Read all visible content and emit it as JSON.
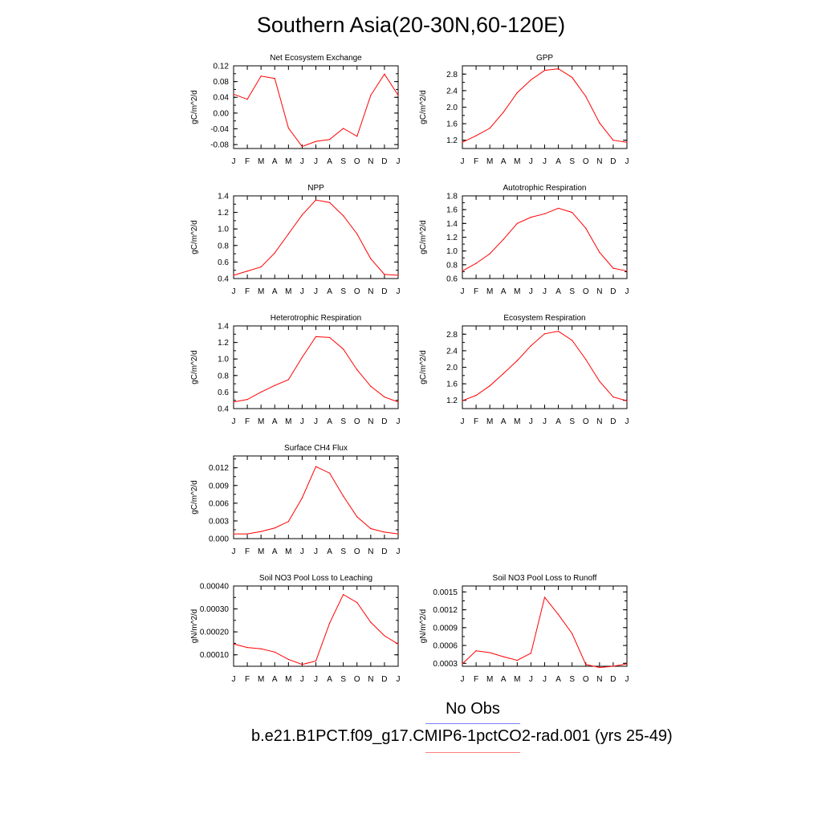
{
  "title": "Southern Asia(20-30N,60-120E)",
  "months": [
    "J",
    "F",
    "M",
    "A",
    "M",
    "J",
    "J",
    "A",
    "S",
    "O",
    "N",
    "D",
    "J"
  ],
  "legend": {
    "obs_label": "No Obs",
    "model_label": "b.e21.B1PCT.f09_g17.CMIP6-1pctCO2-rad.001 (yrs 25-49)",
    "obs_color": "#7f7fff",
    "model_color": "#ff0000"
  },
  "chart_data": [
    {
      "type": "line",
      "title": "Net Ecosystem Exchange",
      "ylabel": "gC/m^2/d",
      "ylim": [
        -0.09,
        0.12
      ],
      "yticks": [
        -0.08,
        -0.04,
        0.0,
        0.04,
        0.08,
        0.12
      ],
      "ytick_labels": [
        "-0.08",
        "-0.04",
        "0.00",
        "0.04",
        "0.08",
        "0.12"
      ],
      "values": [
        0.048,
        0.035,
        0.094,
        0.088,
        -0.038,
        -0.085,
        -0.072,
        -0.067,
        -0.039,
        -0.059,
        0.045,
        0.099,
        0.045
      ]
    },
    {
      "type": "line",
      "title": "GPP",
      "ylabel": "gC/m^2/d",
      "ylim": [
        1.0,
        3.0
      ],
      "yticks": [
        1.2,
        1.6,
        2.0,
        2.4,
        2.8
      ],
      "ytick_labels": [
        "1.2",
        "1.6",
        "2.0",
        "2.4",
        "2.8"
      ],
      "values": [
        1.15,
        1.31,
        1.49,
        1.88,
        2.35,
        2.66,
        2.89,
        2.93,
        2.72,
        2.26,
        1.62,
        1.2,
        1.15
      ]
    },
    {
      "type": "line",
      "title": "NPP",
      "ylabel": "gC/m^2/d",
      "ylim": [
        0.4,
        1.4
      ],
      "yticks": [
        0.4,
        0.6,
        0.8,
        1.0,
        1.2,
        1.4
      ],
      "ytick_labels": [
        "0.4",
        "0.6",
        "0.8",
        "1.0",
        "1.2",
        "1.4"
      ],
      "values": [
        0.44,
        0.49,
        0.54,
        0.71,
        0.94,
        1.17,
        1.35,
        1.32,
        1.16,
        0.94,
        0.64,
        0.45,
        0.44
      ]
    },
    {
      "type": "line",
      "title": "Autotrophic Respiration",
      "ylabel": "gC/m^2/d",
      "ylim": [
        0.6,
        1.8
      ],
      "yticks": [
        0.6,
        0.8,
        1.0,
        1.2,
        1.4,
        1.6,
        1.8
      ],
      "ytick_labels": [
        "0.6",
        "0.8",
        "1.0",
        "1.2",
        "1.4",
        "1.6",
        "1.8"
      ],
      "values": [
        0.71,
        0.82,
        0.96,
        1.17,
        1.4,
        1.49,
        1.54,
        1.62,
        1.56,
        1.33,
        0.98,
        0.75,
        0.71
      ]
    },
    {
      "type": "line",
      "title": "Heterotrophic Respiration",
      "ylabel": "gC/m^2/d",
      "ylim": [
        0.4,
        1.4
      ],
      "yticks": [
        0.4,
        0.6,
        0.8,
        1.0,
        1.2,
        1.4
      ],
      "ytick_labels": [
        "0.4",
        "0.6",
        "0.8",
        "1.0",
        "1.2",
        "1.4"
      ],
      "values": [
        0.48,
        0.51,
        0.6,
        0.68,
        0.75,
        1.02,
        1.27,
        1.26,
        1.12,
        0.87,
        0.67,
        0.54,
        0.48
      ]
    },
    {
      "type": "line",
      "title": "Ecosystem Respiration",
      "ylabel": "gC/m^2/d",
      "ylim": [
        1.0,
        3.0
      ],
      "yticks": [
        1.2,
        1.6,
        2.0,
        2.4,
        2.8
      ],
      "ytick_labels": [
        "1.2",
        "1.6",
        "2.0",
        "2.4",
        "2.8"
      ],
      "values": [
        1.19,
        1.32,
        1.55,
        1.85,
        2.16,
        2.52,
        2.81,
        2.87,
        2.65,
        2.19,
        1.66,
        1.28,
        1.19
      ]
    },
    {
      "type": "line",
      "title": "Surface CH4 Flux",
      "ylabel": "gC/m^2/d",
      "ylim": [
        0.0,
        0.014
      ],
      "yticks": [
        0.0,
        0.003,
        0.006,
        0.009,
        0.012
      ],
      "ytick_labels": [
        "0.000",
        "0.003",
        "0.006",
        "0.009",
        "0.012"
      ],
      "values": [
        0.0008,
        0.0008,
        0.0012,
        0.0018,
        0.0029,
        0.0069,
        0.0122,
        0.0111,
        0.0072,
        0.0037,
        0.0017,
        0.0011,
        0.0008
      ]
    },
    {
      "type": "line",
      "title": "Soil NO3 Pool Loss to Leaching",
      "ylabel": "gN/m^2/d",
      "ylim": [
        5e-05,
        0.0004
      ],
      "yticks": [
        0.0001,
        0.0002,
        0.0003,
        0.0004
      ],
      "ytick_labels": [
        "0.00010",
        "0.00020",
        "0.00030",
        "0.00040"
      ],
      "values": [
        0.000147,
        0.000132,
        0.000126,
        0.000112,
        8e-05,
        5.8e-05,
        7.3e-05,
        0.000238,
        0.000363,
        0.000328,
        0.000242,
        0.000183,
        0.000147
      ]
    },
    {
      "type": "line",
      "title": "Soil NO3 Pool Loss to Runoff",
      "ylabel": "gN/m^2/d",
      "ylim": [
        0.00025,
        0.0016
      ],
      "yticks": [
        0.0003,
        0.0006,
        0.0009,
        0.0012,
        0.0015
      ],
      "ytick_labels": [
        "0.0003",
        "0.0006",
        "0.0009",
        "0.0012",
        "0.0015"
      ],
      "values": [
        0.00029,
        0.00051,
        0.00048,
        0.00041,
        0.00035,
        0.00047,
        0.00141,
        0.00112,
        0.0008,
        0.00028,
        0.00023,
        0.00025,
        0.00029
      ]
    }
  ]
}
